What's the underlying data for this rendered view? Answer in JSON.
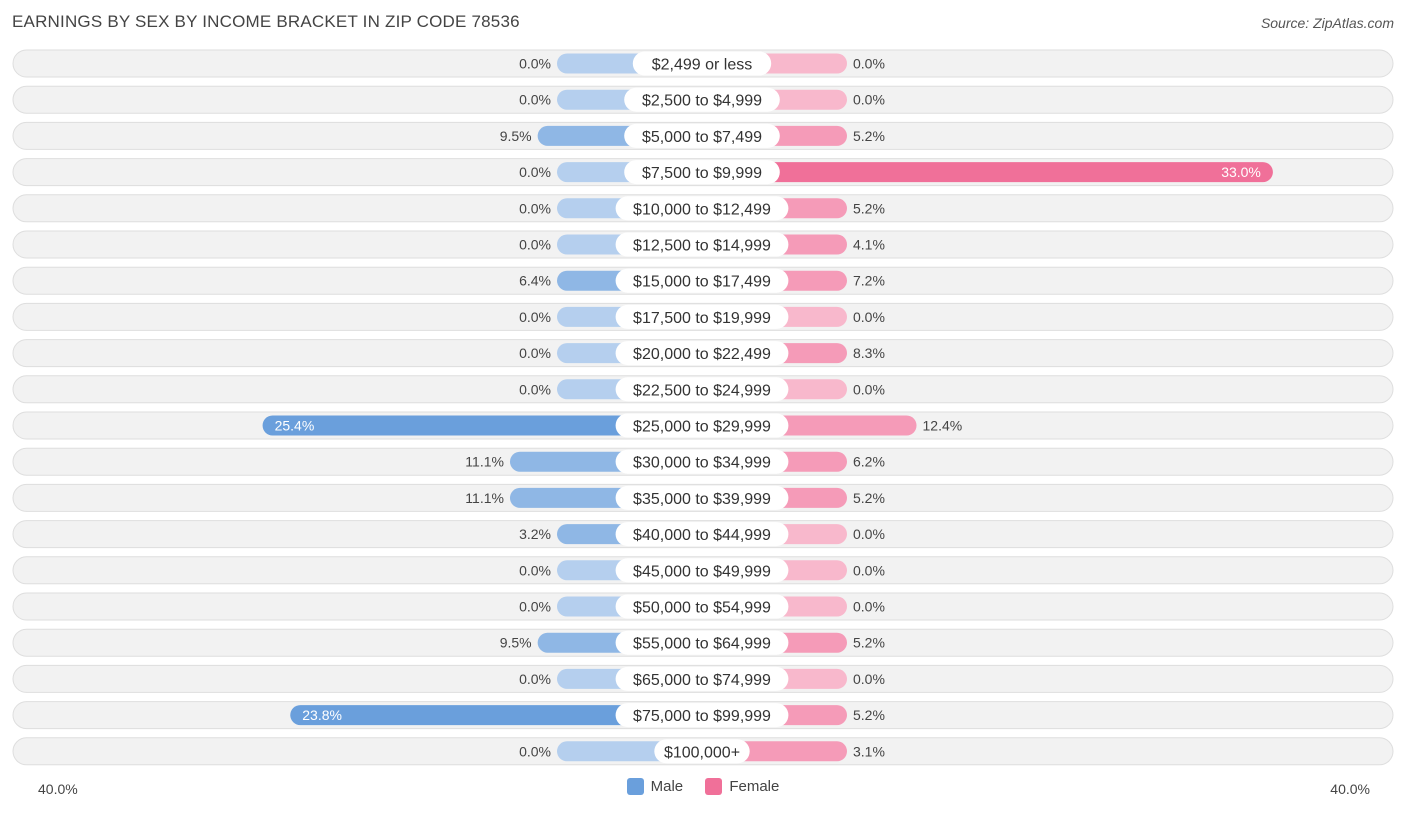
{
  "chart_data": {
    "type": "bar",
    "orientation": "horizontal-diverging",
    "title": "EARNINGS BY SEX BY INCOME BRACKET IN ZIP CODE 78536",
    "source": "Source: ZipAtlas.com",
    "categories": [
      "$2,499 or less",
      "$2,500 to $4,999",
      "$5,000 to $7,499",
      "$7,500 to $9,999",
      "$10,000 to $12,499",
      "$12,500 to $14,999",
      "$15,000 to $17,499",
      "$17,500 to $19,999",
      "$20,000 to $22,499",
      "$22,500 to $24,999",
      "$25,000 to $29,999",
      "$30,000 to $34,999",
      "$35,000 to $39,999",
      "$40,000 to $44,999",
      "$45,000 to $49,999",
      "$50,000 to $54,999",
      "$55,000 to $64,999",
      "$65,000 to $74,999",
      "$75,000 to $99,999",
      "$100,000+"
    ],
    "series": [
      {
        "name": "Male",
        "color": "#6a9fdc",
        "values": [
          0.0,
          0.0,
          9.5,
          0.0,
          0.0,
          0.0,
          6.4,
          0.0,
          0.0,
          0.0,
          25.4,
          11.1,
          11.1,
          3.2,
          0.0,
          0.0,
          9.5,
          0.0,
          23.8,
          0.0
        ],
        "labels": [
          "0.0%",
          "0.0%",
          "9.5%",
          "0.0%",
          "0.0%",
          "0.0%",
          "6.4%",
          "0.0%",
          "0.0%",
          "0.0%",
          "25.4%",
          "11.1%",
          "11.1%",
          "3.2%",
          "0.0%",
          "0.0%",
          "9.5%",
          "0.0%",
          "23.8%",
          "0.0%"
        ]
      },
      {
        "name": "Female",
        "color": "#f07099",
        "values": [
          0.0,
          0.0,
          5.2,
          33.0,
          5.2,
          4.1,
          7.2,
          0.0,
          8.3,
          0.0,
          12.4,
          6.2,
          5.2,
          0.0,
          0.0,
          0.0,
          5.2,
          0.0,
          5.2,
          3.1
        ],
        "labels": [
          "0.0%",
          "0.0%",
          "5.2%",
          "33.0%",
          "5.2%",
          "4.1%",
          "7.2%",
          "0.0%",
          "8.3%",
          "0.0%",
          "12.4%",
          "6.2%",
          "5.2%",
          "0.0%",
          "0.0%",
          "0.0%",
          "5.2%",
          "0.0%",
          "5.2%",
          "3.1%"
        ]
      }
    ],
    "xlim": [
      -40,
      40
    ],
    "axis_left_label": "40.0%",
    "axis_right_label": "40.0%",
    "legend": [
      "Male",
      "Female"
    ],
    "legend_position": "bottom-center"
  }
}
